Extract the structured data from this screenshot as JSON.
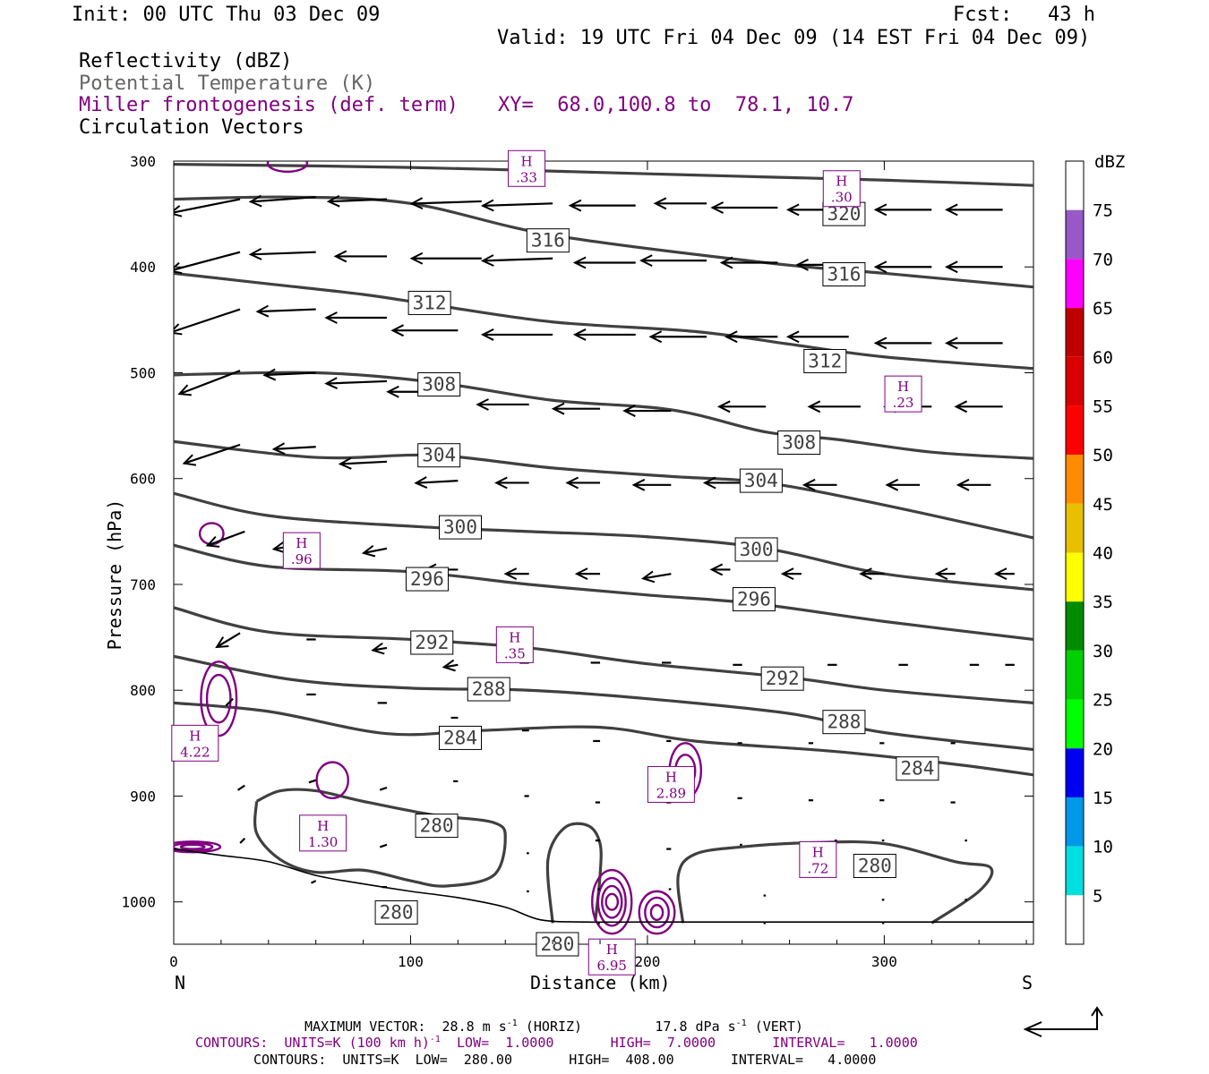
{
  "header": {
    "init": "Init: 00 UTC Thu 03 Dec 09",
    "fcst": "Fcst:   43 h",
    "valid": "Valid: 19 UTC Fri 04 Dec 09 (14 EST Fri 04 Dec 09)"
  },
  "fields": {
    "reflectivity": "Reflectivity (dBZ)",
    "theta": "Potential Temperature (K)",
    "frontogenesis": "Miller frontogenesis (def. term)",
    "xy": "XY=  68.0,100.8 to  78.1, 10.7",
    "vectors": "Circulation Vectors"
  },
  "colors": {
    "theta_contour": "#404040",
    "frontogenesis": "#800080",
    "vectors": "#000000"
  },
  "chart_data": {
    "type": "cross-section",
    "xlabel": "Distance (km)",
    "ylabel": "Pressure (hPa)",
    "xlim": [
      0,
      363
    ],
    "ylim": [
      1040,
      300
    ],
    "y_axis": "pressure",
    "x_ticks": [
      0,
      100,
      200,
      300
    ],
    "x_tick_labels": [
      "0",
      "100",
      "200",
      "300"
    ],
    "y_ticks": [
      300,
      400,
      500,
      600,
      700,
      800,
      900,
      1000
    ],
    "y_tick_labels": [
      "300",
      "400",
      "500",
      "600",
      "700",
      "800",
      "900",
      "1000"
    ],
    "x_end_labels": {
      "left": "N",
      "right": "S"
    },
    "colorbar": {
      "unit": "dBZ",
      "levels": [
        "5",
        "10",
        "15",
        "20",
        "25",
        "30",
        "35",
        "40",
        "45",
        "50",
        "55",
        "60",
        "65",
        "70",
        "75"
      ],
      "colors": [
        "#ffffff",
        "#00e0e0",
        "#0098e8",
        "#0000f0",
        "#00ff00",
        "#00d000",
        "#008c00",
        "#ffff00",
        "#e8c000",
        "#ff8c00",
        "#ff0000",
        "#d80000",
        "#c00000",
        "#ff00ff",
        "#9858c8",
        "#ffffff"
      ]
    },
    "isentropes": [
      {
        "label": "320",
        "points": [
          [
            0,
            303
          ],
          [
            100,
            306
          ],
          [
            200,
            312
          ],
          [
            250,
            315
          ],
          [
            300,
            318
          ],
          [
            363,
            323
          ]
        ],
        "label_at": [
          283,
          350
        ]
      },
      {
        "label": "316",
        "points": [
          [
            0,
            336
          ],
          [
            50,
            334
          ],
          [
            100,
            340
          ],
          [
            160,
            370
          ],
          [
            250,
            396
          ],
          [
            300,
            406
          ],
          [
            363,
            419
          ]
        ],
        "label_at": [
          158,
          375
        ],
        "label2_at": [
          283,
          407
        ]
      },
      {
        "label": "312",
        "points": [
          [
            0,
            406
          ],
          [
            40,
            416
          ],
          [
            80,
            426
          ],
          [
            110,
            436
          ],
          [
            160,
            452
          ],
          [
            220,
            461
          ],
          [
            260,
            473
          ],
          [
            300,
            485
          ],
          [
            363,
            496
          ]
        ],
        "label_at": [
          108,
          434
        ],
        "label2_at": [
          275,
          489
        ]
      },
      {
        "label": "308",
        "points": [
          [
            0,
            502
          ],
          [
            60,
            500
          ],
          [
            110,
            509
          ],
          [
            160,
            526
          ],
          [
            210,
            535
          ],
          [
            250,
            556
          ],
          [
            280,
            563
          ],
          [
            320,
            575
          ],
          [
            363,
            581
          ]
        ],
        "label_at": [
          112,
          511
        ],
        "label2_at": [
          264,
          566
        ]
      },
      {
        "label": "304",
        "points": [
          [
            0,
            565
          ],
          [
            60,
            580
          ],
          [
            110,
            578
          ],
          [
            160,
            590
          ],
          [
            210,
            598
          ],
          [
            250,
            604
          ],
          [
            300,
            625
          ],
          [
            363,
            656
          ]
        ],
        "label_at": [
          112,
          578
        ],
        "label2_at": [
          248,
          602
        ]
      },
      {
        "label": "300",
        "points": [
          [
            0,
            614
          ],
          [
            40,
            635
          ],
          [
            100,
            645
          ],
          [
            150,
            650
          ],
          [
            200,
            655
          ],
          [
            250,
            666
          ],
          [
            300,
            690
          ],
          [
            363,
            705
          ]
        ],
        "label_at": [
          121,
          646
        ],
        "label2_at": [
          246,
          667
        ]
      },
      {
        "label": "296",
        "points": [
          [
            0,
            663
          ],
          [
            40,
            683
          ],
          [
            100,
            688
          ],
          [
            150,
            700
          ],
          [
            200,
            710
          ],
          [
            245,
            718
          ],
          [
            300,
            735
          ],
          [
            363,
            752
          ]
        ],
        "label_at": [
          107,
          695
        ],
        "label2_at": [
          245,
          714
        ]
      },
      {
        "label": "292",
        "points": [
          [
            0,
            722
          ],
          [
            40,
            745
          ],
          [
            100,
            752
          ],
          [
            150,
            760
          ],
          [
            200,
            775
          ],
          [
            260,
            788
          ],
          [
            300,
            800
          ],
          [
            363,
            812
          ]
        ],
        "label_at": [
          109,
          755
        ],
        "label2_at": [
          257,
          789
        ]
      },
      {
        "label": "288",
        "points": [
          [
            0,
            768
          ],
          [
            50,
            790
          ],
          [
            100,
            798
          ],
          [
            150,
            800
          ],
          [
            200,
            808
          ],
          [
            260,
            822
          ],
          [
            300,
            840
          ],
          [
            363,
            856
          ]
        ],
        "label_at": [
          133,
          799
        ],
        "label2_at": [
          283,
          830
        ]
      },
      {
        "label": "284",
        "points": [
          [
            0,
            812
          ],
          [
            40,
            820
          ],
          [
            90,
            841
          ],
          [
            130,
            838
          ],
          [
            180,
            835
          ],
          [
            220,
            848
          ],
          [
            280,
            858
          ],
          [
            330,
            870
          ],
          [
            363,
            880
          ]
        ],
        "label_at": [
          121,
          845
        ],
        "label2_at": [
          314,
          874
        ]
      }
    ],
    "isentrope_280_loops": [
      {
        "label": "280",
        "label_at": [
          111,
          928
        ]
      },
      {
        "label": "280",
        "label_at": [
          94,
          1010
        ]
      },
      {
        "label": "280",
        "label_at": [
          162,
          1040
        ]
      },
      {
        "label": "280",
        "label_at": [
          296,
          966
        ]
      }
    ],
    "frontogenesis_maxima": [
      {
        "label": "H",
        "value": ".33",
        "at": [
          149,
          307
        ]
      },
      {
        "label": "H",
        "value": ".30",
        "at": [
          282,
          326
        ]
      },
      {
        "label": "H",
        "value": ".23",
        "at": [
          308,
          520
        ]
      },
      {
        "label": "H",
        "value": ".96",
        "at": [
          54,
          668
        ]
      },
      {
        "label": "H",
        "value": ".35",
        "at": [
          144,
          757
        ]
      },
      {
        "label": "H",
        "value": "4.22",
        "at": [
          9,
          850
        ]
      },
      {
        "label": "H",
        "value": "2.89",
        "at": [
          210,
          889
        ]
      },
      {
        "label": "H",
        "value": "1.30",
        "at": [
          63,
          935
        ]
      },
      {
        "label": "H",
        "value": ".72",
        "at": [
          272,
          960
        ]
      },
      {
        "label": "H",
        "value": "6.95",
        "at": [
          185,
          1052
        ]
      }
    ],
    "circulation_vectors": [
      [
        28,
        336,
        -30,
        6
      ],
      [
        60,
        334,
        -28,
        2
      ],
      [
        90,
        336,
        -25,
        1
      ],
      [
        130,
        338,
        -30,
        1
      ],
      [
        160,
        340,
        -30,
        1
      ],
      [
        195,
        342,
        -28,
        0
      ],
      [
        225,
        340,
        -22,
        0
      ],
      [
        255,
        344,
        -28,
        0
      ],
      [
        285,
        346,
        -26,
        0
      ],
      [
        320,
        346,
        -24,
        0
      ],
      [
        350,
        346,
        -24,
        0
      ],
      [
        28,
        386,
        -30,
        8
      ],
      [
        60,
        386,
        -28,
        1
      ],
      [
        90,
        390,
        -22,
        0
      ],
      [
        130,
        392,
        -30,
        0
      ],
      [
        160,
        392,
        -30,
        1
      ],
      [
        195,
        396,
        -26,
        0
      ],
      [
        225,
        394,
        -28,
        0
      ],
      [
        255,
        396,
        -24,
        0
      ],
      [
        285,
        398,
        -22,
        0
      ],
      [
        320,
        400,
        -24,
        0
      ],
      [
        350,
        400,
        -24,
        0
      ],
      [
        28,
        440,
        -30,
        10
      ],
      [
        60,
        440,
        -25,
        1
      ],
      [
        90,
        448,
        -26,
        0
      ],
      [
        120,
        460,
        -28,
        0
      ],
      [
        160,
        464,
        -30,
        0
      ],
      [
        195,
        464,
        -26,
        0
      ],
      [
        225,
        466,
        -24,
        0
      ],
      [
        255,
        466,
        -22,
        0
      ],
      [
        285,
        466,
        -26,
        0
      ],
      [
        320,
        472,
        -24,
        0
      ],
      [
        350,
        472,
        -24,
        0
      ],
      [
        28,
        498,
        -26,
        10
      ],
      [
        60,
        500,
        -22,
        1
      ],
      [
        90,
        508,
        -26,
        1
      ],
      [
        120,
        518,
        -30,
        0
      ],
      [
        150,
        530,
        -22,
        0
      ],
      [
        180,
        534,
        -20,
        0
      ],
      [
        210,
        536,
        -20,
        0
      ],
      [
        250,
        532,
        -20,
        0
      ],
      [
        290,
        532,
        -22,
        0
      ],
      [
        320,
        532,
        -20,
        0
      ],
      [
        350,
        532,
        -20,
        0
      ],
      [
        28,
        568,
        -24,
        8
      ],
      [
        60,
        570,
        -18,
        1
      ],
      [
        90,
        584,
        -20,
        1
      ],
      [
        120,
        602,
        -18,
        1
      ],
      [
        150,
        604,
        -14,
        0
      ],
      [
        180,
        604,
        -14,
        0
      ],
      [
        210,
        606,
        -16,
        0
      ],
      [
        240,
        604,
        -16,
        0
      ],
      [
        280,
        606,
        -14,
        0
      ],
      [
        315,
        606,
        -14,
        0
      ],
      [
        345,
        606,
        -14,
        0
      ],
      [
        30,
        650,
        -16,
        6
      ],
      [
        60,
        660,
        -18,
        3
      ],
      [
        90,
        666,
        -10,
        2
      ],
      [
        120,
        686,
        -14,
        0
      ],
      [
        150,
        690,
        -10,
        0
      ],
      [
        180,
        690,
        -10,
        0
      ],
      [
        210,
        690,
        -12,
        2
      ],
      [
        235,
        686,
        -8,
        0
      ],
      [
        265,
        690,
        -8,
        0
      ],
      [
        300,
        690,
        -10,
        0
      ],
      [
        330,
        690,
        -8,
        0
      ],
      [
        355,
        690,
        -8,
        0
      ],
      [
        28,
        746,
        -10,
        6
      ],
      [
        60,
        752,
        -4,
        0
      ],
      [
        90,
        760,
        -6,
        1
      ],
      [
        120,
        776,
        -6,
        1
      ],
      [
        150,
        774,
        -4,
        0
      ],
      [
        180,
        774,
        -4,
        0
      ],
      [
        210,
        774,
        -4,
        0
      ],
      [
        240,
        776,
        -4,
        0
      ],
      [
        280,
        776,
        -4,
        0
      ],
      [
        310,
        776,
        -4,
        0
      ],
      [
        340,
        776,
        -4,
        0
      ],
      [
        355,
        776,
        -4,
        0
      ],
      [
        25,
        808,
        -3,
        3
      ],
      [
        60,
        804,
        -4,
        0
      ],
      [
        90,
        812,
        -4,
        0
      ],
      [
        120,
        826,
        -3,
        0
      ],
      [
        150,
        838,
        -3,
        0
      ],
      [
        180,
        848,
        -3,
        0
      ],
      [
        210,
        848,
        -2,
        0
      ],
      [
        240,
        850,
        -2,
        0
      ],
      [
        270,
        850,
        -2,
        0
      ],
      [
        300,
        850,
        -2,
        0
      ],
      [
        330,
        850,
        -2,
        0
      ],
      [
        30,
        890,
        -3,
        2
      ],
      [
        60,
        885,
        -3,
        1
      ],
      [
        90,
        892,
        -3,
        1
      ],
      [
        120,
        886,
        -2,
        0
      ],
      [
        150,
        900,
        -2,
        0
      ],
      [
        180,
        906,
        -2,
        0
      ],
      [
        210,
        906,
        -2,
        0
      ],
      [
        240,
        902,
        -2,
        0
      ],
      [
        270,
        904,
        -2,
        0
      ],
      [
        300,
        904,
        -2,
        0
      ],
      [
        330,
        906,
        -2,
        0
      ],
      [
        30,
        940,
        -2,
        2
      ],
      [
        60,
        942,
        -2,
        1
      ],
      [
        90,
        946,
        -3,
        1
      ],
      [
        150,
        954,
        -1,
        0
      ],
      [
        180,
        942,
        -2,
        0
      ],
      [
        210,
        950,
        -2,
        0
      ],
      [
        240,
        946,
        -1,
        0
      ],
      [
        280,
        942,
        -1,
        0
      ],
      [
        300,
        942,
        -1,
        0
      ],
      [
        335,
        942,
        -1,
        0
      ],
      [
        60,
        980,
        -2,
        1
      ],
      [
        90,
        986,
        -2,
        0
      ],
      [
        150,
        990,
        -1,
        0
      ],
      [
        180,
        988,
        -1,
        0
      ],
      [
        210,
        988,
        -1,
        0
      ],
      [
        250,
        994,
        -1,
        0
      ],
      [
        300,
        998,
        -1,
        0
      ],
      [
        335,
        998,
        -1,
        0
      ],
      [
        100,
        1020,
        -1,
        0
      ],
      [
        180,
        1020,
        -1,
        0
      ],
      [
        250,
        1020,
        -1,
        0
      ],
      [
        300,
        1020,
        -1,
        0
      ]
    ],
    "terrain": [
      [
        0,
        950
      ],
      [
        20,
        956
      ],
      [
        40,
        962
      ],
      [
        60,
        975
      ],
      [
        80,
        983
      ],
      [
        100,
        990
      ],
      [
        120,
        996
      ],
      [
        140,
        1005
      ],
      [
        155,
        1017
      ],
      [
        175,
        1019
      ],
      [
        200,
        1019
      ],
      [
        230,
        1019
      ],
      [
        260,
        1019
      ],
      [
        300,
        1019
      ],
      [
        363,
        1019
      ]
    ]
  },
  "footer": {
    "max_vector": "MAXIMUM VECTOR:  28.8 m s",
    "max_vector_exp": "-1",
    "max_vector_horiz": " (HORIZ)         17.8 dPa s",
    "max_vector_exp2": "-1",
    "max_vector_vert": " (VERT)",
    "contours1_a": "CONTOURS:  UNITS=K (100 km h)",
    "contours1_exp": "-1",
    "contours1_b": "  LOW=  1.0000       HIGH=  7.0000       INTERVAL=   1.0000",
    "contours2": "CONTOURS:  UNITS=K  LOW=  280.00       HIGH=  408.00       INTERVAL=   4.0000"
  }
}
